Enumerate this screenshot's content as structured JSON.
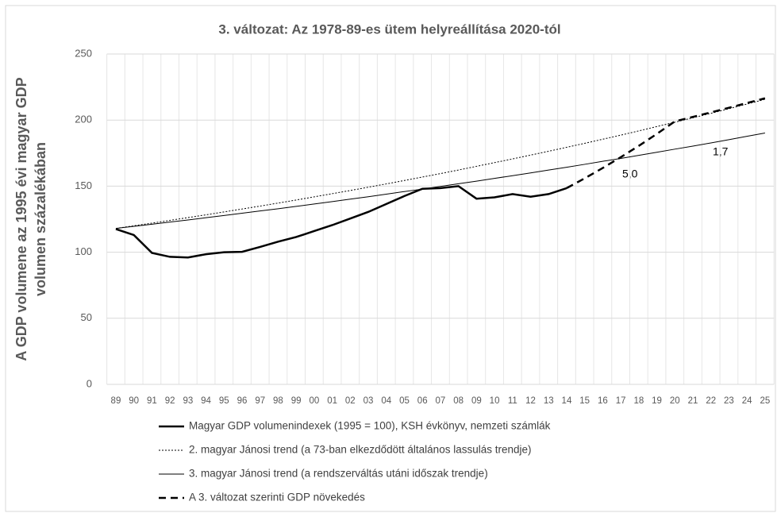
{
  "chart_data": {
    "type": "line",
    "title": "3. változat: Az 1978-89-es ütem helyreállítása 2020-tól",
    "ylabel_lines": [
      "A GDP volumene az 1995 évi magyar GDP",
      "volumen százalékában"
    ],
    "categories": [
      "89",
      "90",
      "91",
      "92",
      "93",
      "94",
      "95",
      "96",
      "97",
      "98",
      "99",
      "00",
      "01",
      "02",
      "03",
      "04",
      "05",
      "06",
      "07",
      "08",
      "09",
      "10",
      "11",
      "12",
      "13",
      "14",
      "15",
      "16",
      "17",
      "18",
      "19",
      "20",
      "21",
      "22",
      "23",
      "24",
      "25"
    ],
    "series": [
      {
        "name": "Magyar GDP volumenindexek (1995 = 100), KSH évkönyv, nemzeti számlák",
        "color": "#000000",
        "style": "solid",
        "width": 2.5,
        "values": [
          117.5,
          113,
          99.5,
          96.5,
          96,
          98.5,
          100,
          100.3,
          104,
          108,
          111.5,
          116,
          120.5,
          125.5,
          130.5,
          136.5,
          142.5,
          148,
          148.5,
          150,
          140.5,
          141.5,
          144,
          142,
          144,
          148.5,
          null,
          null,
          null,
          null,
          null,
          null,
          null,
          null,
          null,
          null,
          null
        ]
      },
      {
        "name": "2. magyar Jánosi trend (a 73-ban elkezdődött általános lassulás trendje)",
        "color": "#000000",
        "style": "dotted",
        "width": 1,
        "values": [
          118,
          120,
          122,
          124.1,
          126.2,
          128.3,
          130.5,
          132.7,
          134.9,
          137.2,
          139.5,
          141.9,
          144.3,
          146.7,
          149.2,
          151.7,
          154.3,
          156.9,
          159.5,
          162.2,
          165,
          167.8,
          170.6,
          173.5,
          176.4,
          179.4,
          182.4,
          185.5,
          188.6,
          191.8,
          195.1,
          198.4,
          201.7,
          205.1,
          208.6,
          212.1,
          215.7
        ]
      },
      {
        "name": "3. magyar Jánosi trend (a rendszerváltás utáni időszak trendje)",
        "color": "#000000",
        "style": "solid",
        "width": 1,
        "values": [
          118,
          119.6,
          121.2,
          122.8,
          124.4,
          126.1,
          127.8,
          129.5,
          131.2,
          132.9,
          134.7,
          136.5,
          138.3,
          140.2,
          142,
          143.9,
          145.9,
          147.8,
          149.8,
          151.8,
          153.8,
          155.9,
          157.9,
          160,
          162.2,
          164.3,
          166.5,
          168.8,
          171,
          173.3,
          175.6,
          178,
          180.3,
          182.7,
          185.2,
          187.7,
          190.2
        ]
      },
      {
        "name": "A 3. változat szerinti GDP növekedés",
        "color": "#000000",
        "style": "dashed",
        "width": 2.5,
        "values": [
          null,
          null,
          null,
          null,
          null,
          null,
          null,
          null,
          null,
          null,
          null,
          null,
          null,
          null,
          null,
          null,
          null,
          null,
          null,
          null,
          null,
          null,
          null,
          null,
          null,
          148.5,
          155.9,
          163.7,
          171.9,
          180.5,
          189.5,
          199,
          202.4,
          205.8,
          209.3,
          212.9,
          216.5
        ]
      }
    ],
    "annotations": [
      "1,7",
      "5,0"
    ],
    "ylim": [
      0,
      250
    ],
    "yticks": [
      0,
      50,
      100,
      150,
      200,
      250
    ],
    "grid": true
  }
}
